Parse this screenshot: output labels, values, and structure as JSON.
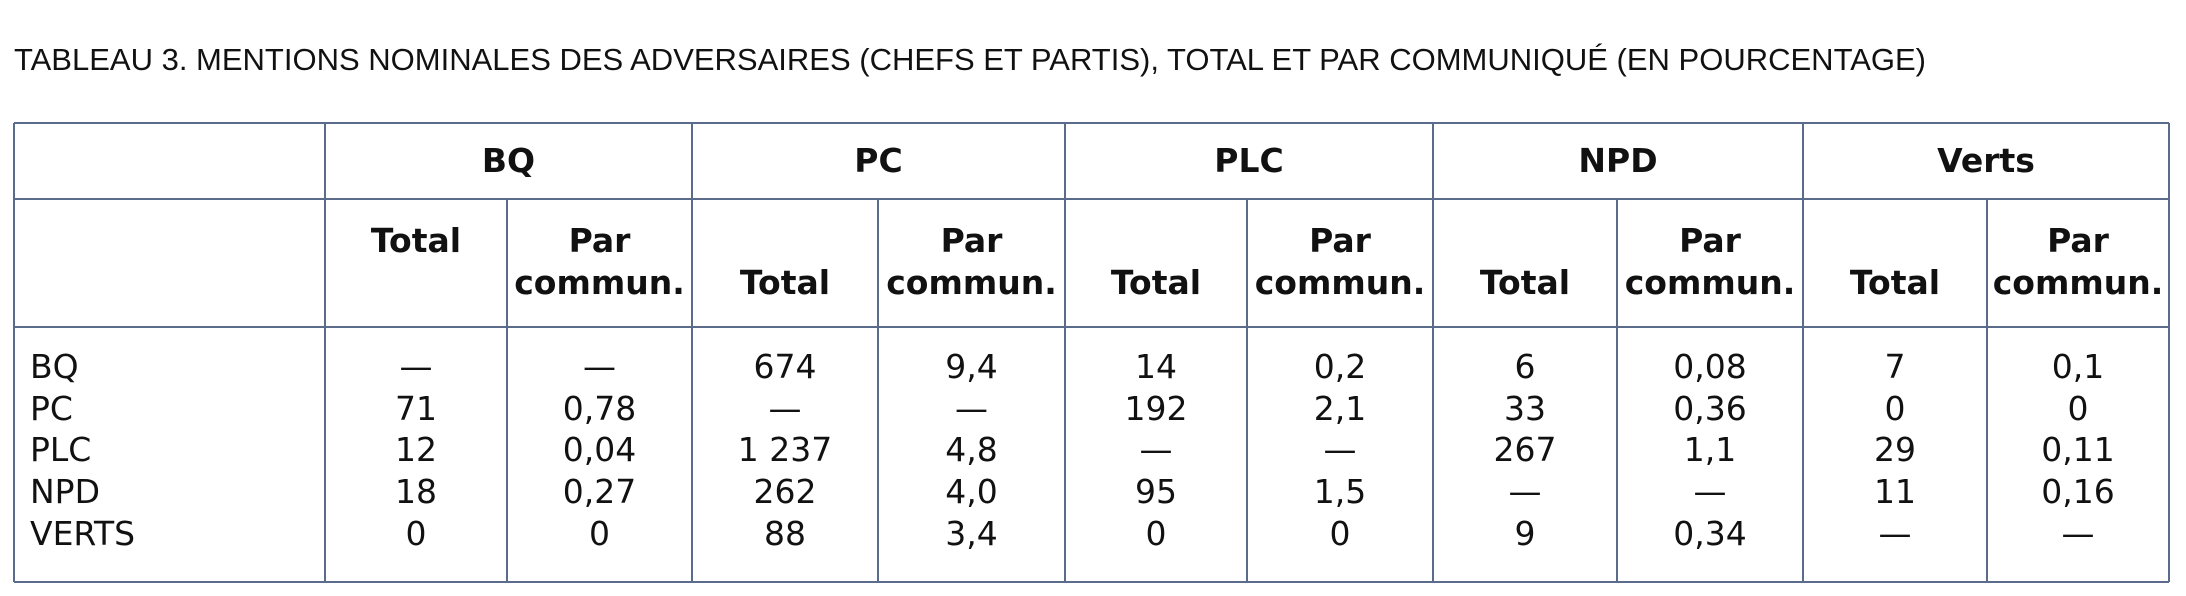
{
  "title": "TABLEAU 3. MENTIONS NOMINALES DES ADVERSAIRES (CHEFS ET PARTIS), TOTAL ET PAR COMMUNIQUÉ (EN POURCENTAGE)",
  "table": {
    "groups": [
      {
        "name": "BQ",
        "columns": [
          "Total",
          "Par commun."
        ]
      },
      {
        "name": "PC",
        "columns": [
          "Total",
          "Par commun."
        ]
      },
      {
        "name": "PLC",
        "columns": [
          "Total",
          "Par commun."
        ]
      },
      {
        "name": "NPD",
        "columns": [
          "Total",
          "Par commun."
        ]
      },
      {
        "name": "Verts",
        "columns": [
          "Total",
          "Par commun."
        ]
      }
    ],
    "rows": [
      {
        "label": "BQ",
        "values": [
          "—",
          "—",
          "674",
          "9,4",
          "14",
          "0,2",
          "6",
          "0,08",
          "7",
          "0,1"
        ]
      },
      {
        "label": "PC",
        "values": [
          "71",
          "0,78",
          "—",
          "—",
          "192",
          "2,1",
          "33",
          "0,36",
          "0",
          "0"
        ]
      },
      {
        "label": "PLC",
        "values": [
          "12",
          "0,04",
          "1 237",
          "4,8",
          "—",
          "—",
          "267",
          "1,1",
          "29",
          "0,11"
        ]
      },
      {
        "label": "NPD",
        "values": [
          "18",
          "0,27",
          "262",
          "4,0",
          "95",
          "1,5",
          "—",
          "—",
          "11",
          "0,16"
        ]
      },
      {
        "label": "VERTS",
        "values": [
          "0",
          "0",
          "88",
          "3,4",
          "0",
          "0",
          "9",
          "0,34",
          "—",
          "—"
        ]
      }
    ]
  }
}
